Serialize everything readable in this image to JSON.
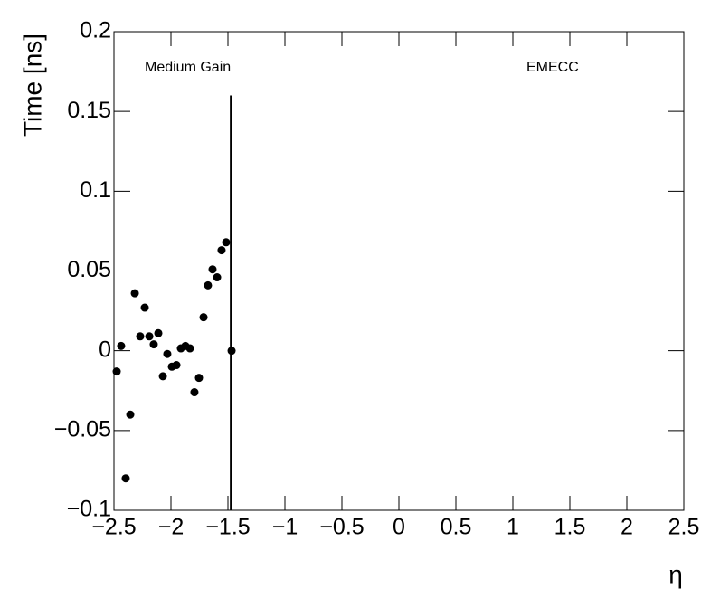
{
  "chart_data": {
    "type": "scatter",
    "x_label": "η",
    "y_label": "Time [ns]",
    "annotations": [
      "Medium Gain",
      "EMECC"
    ],
    "color": "#000000",
    "x": [
      -2.476,
      -2.437,
      -2.397,
      -2.357,
      -2.317,
      -2.27,
      -2.23,
      -2.19,
      -2.151,
      -2.111,
      -2.071,
      -2.032,
      -1.992,
      -1.952,
      -1.913,
      -1.873,
      -1.833,
      -1.794,
      -1.754,
      -1.714,
      -1.675,
      -1.635,
      -1.595,
      -1.556,
      -1.516,
      -1.468
    ],
    "values": [
      -0.013,
      0.003,
      -0.08,
      -0.04,
      0.036,
      0.009,
      0.027,
      0.009,
      0.004,
      0.011,
      -0.016,
      -0.002,
      -0.01,
      -0.009,
      0.0015,
      0.003,
      0.0015,
      -0.026,
      -0.017,
      0.021,
      0.041,
      0.051,
      0.046,
      0.063,
      0.068,
      0
    ],
    "vline": {
      "x": -1.475,
      "y": [
        -0.1,
        0.16
      ]
    },
    "xlim": [
      -2.5,
      2.5
    ],
    "ylim": [
      -0.1,
      0.2
    ],
    "xticks": [
      {
        "value": -2.5,
        "label": "−2.5"
      },
      {
        "value": -2,
        "label": "−2"
      },
      {
        "value": -1.5,
        "label": "−1.5"
      },
      {
        "value": -1,
        "label": "−1"
      },
      {
        "value": -0.5,
        "label": "−0.5"
      },
      0,
      0.5,
      1,
      1.5,
      2,
      2.5
    ],
    "yticks": [
      {
        "value": -0.1,
        "label": "−0.1"
      },
      {
        "value": -0.05,
        "label": "−0.05"
      },
      0,
      0.05,
      0.1,
      0.15,
      0.2
    ]
  }
}
